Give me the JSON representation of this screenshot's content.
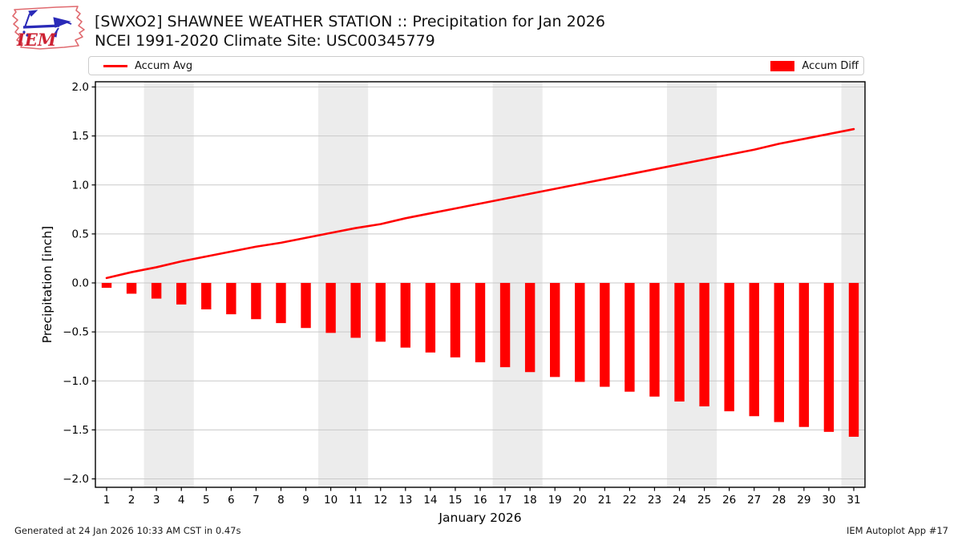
{
  "header": {
    "logo_text": "IEM",
    "title_line1": "[SWXO2] SHAWNEE WEATHER STATION :: Precipitation for Jan 2026",
    "title_line2": "NCEI 1991-2020 Climate Site: USC00345779"
  },
  "legend": {
    "items": [
      {
        "label": "Accum Avg",
        "swatch": "line",
        "color": "#ff0000"
      },
      {
        "label": "Accum Diff",
        "swatch": "patch",
        "color": "#ff0000"
      }
    ]
  },
  "chart_data": {
    "type": "bar",
    "title": "",
    "xlabel": "January 2026",
    "ylabel": "Precipitation [inch]",
    "x": [
      1,
      2,
      3,
      4,
      5,
      6,
      7,
      8,
      9,
      10,
      11,
      12,
      13,
      14,
      15,
      16,
      17,
      18,
      19,
      20,
      21,
      22,
      23,
      24,
      25,
      26,
      27,
      28,
      29,
      30,
      31
    ],
    "series": [
      {
        "name": "Accum Avg",
        "type": "line",
        "color": "#ff0000",
        "values": [
          0.05,
          0.11,
          0.16,
          0.22,
          0.27,
          0.32,
          0.37,
          0.41,
          0.46,
          0.51,
          0.56,
          0.6,
          0.66,
          0.71,
          0.76,
          0.81,
          0.86,
          0.91,
          0.96,
          1.01,
          1.06,
          1.11,
          1.16,
          1.21,
          1.26,
          1.31,
          1.36,
          1.42,
          1.47,
          1.52,
          1.57
        ]
      },
      {
        "name": "Accum Diff",
        "type": "bar",
        "color": "#ff0000",
        "values": [
          -0.05,
          -0.11,
          -0.16,
          -0.22,
          -0.27,
          -0.32,
          -0.37,
          -0.41,
          -0.46,
          -0.51,
          -0.56,
          -0.6,
          -0.66,
          -0.71,
          -0.76,
          -0.81,
          -0.86,
          -0.91,
          -0.96,
          -1.01,
          -1.06,
          -1.11,
          -1.16,
          -1.21,
          -1.26,
          -1.31,
          -1.36,
          -1.42,
          -1.47,
          -1.52,
          -1.57
        ]
      }
    ],
    "xlim": [
      0.55,
      31.45
    ],
    "ylim": [
      -2.05,
      2.05
    ],
    "yticks": [
      2.0,
      1.5,
      1.0,
      0.5,
      0.0,
      -0.5,
      -1.0,
      -1.5,
      -2.0
    ],
    "ytick_labels": [
      "2.0",
      "1.5",
      "1.0",
      "0.5",
      "0.0",
      "−0.5",
      "−1.0",
      "−1.5",
      "−2.0"
    ],
    "xtick_labels": [
      "1",
      "2",
      "3",
      "4",
      "5",
      "6",
      "7",
      "8",
      "9",
      "10",
      "11",
      "12",
      "13",
      "14",
      "15",
      "16",
      "17",
      "18",
      "19",
      "20",
      "21",
      "22",
      "23",
      "24",
      "25",
      "26",
      "27",
      "28",
      "29",
      "30",
      "31"
    ],
    "grid": true,
    "legend_position": "top",
    "weekend_bands": [
      [
        2.5,
        4.5
      ],
      [
        9.5,
        11.5
      ],
      [
        16.5,
        18.5
      ],
      [
        23.5,
        25.5
      ],
      [
        30.5,
        31.45
      ]
    ],
    "colors": {
      "band": "#ececec",
      "grid": "#c9c9c9",
      "spine": "#000000",
      "bar": "#ff0000",
      "line": "#ff0000"
    }
  },
  "footer": {
    "left": "Generated at 24 Jan 2026 10:33 AM CST in 0.47s",
    "right": "IEM Autoplot App #17"
  }
}
